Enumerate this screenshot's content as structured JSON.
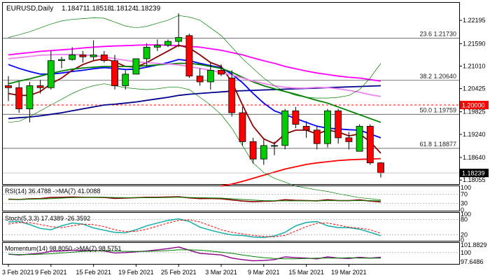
{
  "chart_data": {
    "type": "candlestick",
    "symbol": "EURUSD",
    "timeframe": "Daily",
    "header": {
      "title": "EURUSD,Daily",
      "ohlc": [
        "1.18471",
        "1.18518",
        "1.18124",
        "1.18239"
      ]
    },
    "price_axis": {
      "ylim": [
        1.1795,
        1.2265
      ],
      "ticks": [
        "1.22195",
        "1.21590",
        "1.21010",
        "1.20425",
        "1.19825",
        "1.19240",
        "1.18640",
        "1.18055"
      ],
      "current_price": "1.18239",
      "round_level": "1.20000"
    },
    "x_axis": {
      "labels": [
        "3 Feb 2021",
        "9 Feb 2021",
        "15 Feb 2021",
        "19 Feb 2021",
        "25 Feb 2021",
        "3 Mar 2021",
        "9 Mar 2021",
        "15 Mar 2021",
        "19 Mar 2021"
      ]
    },
    "candles": [
      {
        "o": 1.205,
        "h": 1.2075,
        "l": 1.201,
        "c": 1.2045
      },
      {
        "o": 1.2045,
        "h": 1.206,
        "l": 1.198,
        "c": 1.199
      },
      {
        "o": 1.199,
        "h": 1.206,
        "l": 1.1955,
        "c": 1.205
      },
      {
        "o": 1.205,
        "h": 1.2065,
        "l": 1.203,
        "c": 1.2045
      },
      {
        "o": 1.2045,
        "h": 1.214,
        "l": 1.204,
        "c": 1.2115
      },
      {
        "o": 1.2115,
        "h": 1.2125,
        "l": 1.2095,
        "c": 1.2118
      },
      {
        "o": 1.2118,
        "h": 1.215,
        "l": 1.2115,
        "c": 1.213
      },
      {
        "o": 1.213,
        "h": 1.214,
        "l": 1.211,
        "c": 1.2125
      },
      {
        "o": 1.2125,
        "h": 1.2168,
        "l": 1.2115,
        "c": 1.213
      },
      {
        "o": 1.213,
        "h": 1.214,
        "l": 1.211,
        "c": 1.2115
      },
      {
        "o": 1.2115,
        "h": 1.213,
        "l": 1.204,
        "c": 1.205
      },
      {
        "o": 1.205,
        "h": 1.209,
        "l": 1.204,
        "c": 1.208
      },
      {
        "o": 1.208,
        "h": 1.212,
        "l": 1.208,
        "c": 1.212
      },
      {
        "o": 1.212,
        "h": 1.216,
        "l": 1.21,
        "c": 1.215
      },
      {
        "o": 1.215,
        "h": 1.217,
        "l": 1.214,
        "c": 1.2155
      },
      {
        "o": 1.2155,
        "h": 1.217,
        "l": 1.215,
        "c": 1.2165
      },
      {
        "o": 1.2165,
        "h": 1.2238,
        "l": 1.215,
        "c": 1.2175
      },
      {
        "o": 1.218,
        "h": 1.2185,
        "l": 1.207,
        "c": 1.2075
      },
      {
        "o": 1.2075,
        "h": 1.2095,
        "l": 1.205,
        "c": 1.206
      },
      {
        "o": 1.206,
        "h": 1.211,
        "l": 1.204,
        "c": 1.209
      },
      {
        "o": 1.209,
        "h": 1.2105,
        "l": 1.2075,
        "c": 1.208
      },
      {
        "o": 1.207,
        "h": 1.209,
        "l": 1.197,
        "c": 1.198
      },
      {
        "o": 1.198,
        "h": 1.1995,
        "l": 1.1895,
        "c": 1.1905
      },
      {
        "o": 1.1905,
        "h": 1.1915,
        "l": 1.1848,
        "c": 1.186
      },
      {
        "o": 1.186,
        "h": 1.191,
        "l": 1.1845,
        "c": 1.1895
      },
      {
        "o": 1.1895,
        "h": 1.1905,
        "l": 1.187,
        "c": 1.1895
      },
      {
        "o": 1.1895,
        "h": 1.199,
        "l": 1.1885,
        "c": 1.1985
      },
      {
        "o": 1.1985,
        "h": 1.1995,
        "l": 1.194,
        "c": 1.195
      },
      {
        "o": 1.1945,
        "h": 1.1958,
        "l": 1.1915,
        "c": 1.1935
      },
      {
        "o": 1.1935,
        "h": 1.1945,
        "l": 1.1885,
        "c": 1.19
      },
      {
        "o": 1.19,
        "h": 1.199,
        "l": 1.189,
        "c": 1.1985
      },
      {
        "o": 1.1985,
        "h": 1.199,
        "l": 1.19,
        "c": 1.1915
      },
      {
        "o": 1.1915,
        "h": 1.193,
        "l": 1.1885,
        "c": 1.1905
      },
      {
        "o": 1.188,
        "h": 1.195,
        "l": 1.188,
        "c": 1.1945
      },
      {
        "o": 1.1945,
        "h": 1.195,
        "l": 1.1845,
        "c": 1.185
      },
      {
        "o": 1.185,
        "h": 1.1852,
        "l": 1.1812,
        "c": 1.1824
      }
    ],
    "overlays": [
      {
        "color": "#00008b",
        "values": [
          1.1965,
          1.1967,
          1.1969,
          1.1972,
          1.1976,
          1.198,
          1.1985,
          1.199,
          1.1995,
          1.2,
          1.2002,
          1.2005,
          1.2008,
          1.2012,
          1.2016,
          1.202,
          1.2025,
          1.2028,
          1.203,
          1.2032,
          1.2034,
          1.2036,
          1.2037,
          1.2038,
          1.2039,
          1.204,
          1.2041,
          1.2042,
          1.2043,
          1.2044,
          1.2045,
          1.2046,
          1.2047,
          1.2048,
          1.2049,
          1.205
        ]
      },
      {
        "color": "#ff00ff",
        "values": [
          1.213,
          1.2133,
          1.2136,
          1.2139,
          1.2141,
          1.2143,
          1.2145,
          1.2148,
          1.215,
          1.2152,
          1.2153,
          1.2154,
          1.2155,
          1.2156,
          1.2156,
          1.2155,
          1.2154,
          1.2152,
          1.215,
          1.2146,
          1.2142,
          1.2136,
          1.213,
          1.2122,
          1.2115,
          1.2108,
          1.21,
          1.2094,
          1.2088,
          1.2083,
          1.2079,
          1.2075,
          1.2072,
          1.207,
          1.2066,
          1.2062
        ]
      },
      {
        "color": "#0000ff",
        "values": [
          1.2105,
          1.2095,
          1.2087,
          1.208,
          1.208,
          1.2083,
          1.2087,
          1.209,
          1.2094,
          1.2097,
          1.2095,
          1.2092,
          1.2093,
          1.2098,
          1.2104,
          1.211,
          1.2118,
          1.2115,
          1.2108,
          1.2102,
          1.2097,
          1.208,
          1.2058,
          1.203,
          1.2005,
          1.1985,
          1.1975,
          1.1965,
          1.1955,
          1.1945,
          1.194,
          1.1938,
          1.1936,
          1.1935,
          1.1925,
          1.1915
        ]
      },
      {
        "color": "#8b0000",
        "values": [
          1.203,
          1.2025,
          1.2025,
          1.2035,
          1.2055,
          1.207,
          1.209,
          1.2105,
          1.2115,
          1.212,
          1.2112,
          1.21,
          1.2098,
          1.211,
          1.2125,
          1.214,
          1.2155,
          1.2148,
          1.213,
          1.211,
          1.21,
          1.206,
          1.2,
          1.1945,
          1.1912,
          1.19,
          1.1925,
          1.1935,
          1.1935,
          1.1925,
          1.1935,
          1.193,
          1.192,
          1.1925,
          1.1905,
          1.1875
        ]
      },
      {
        "color": "#008000",
        "values": [
          1.2055,
          1.2062,
          1.2068,
          1.2075,
          1.2082,
          1.2088,
          1.2093,
          1.2096,
          1.2098,
          1.21,
          1.21,
          1.21,
          1.21,
          1.2102,
          1.2104,
          1.2106,
          1.2108,
          1.2108,
          1.2105,
          1.21,
          1.2095,
          1.2085,
          1.2072,
          1.206,
          1.205,
          1.2042,
          1.2035,
          1.2028,
          1.202,
          1.2012,
          1.2005,
          1.1995,
          1.1985,
          1.1975,
          1.1965,
          1.1955
        ]
      },
      {
        "color": "#ee82ee",
        "values": [
          1.212,
          1.2123,
          1.2126,
          1.2129,
          1.213,
          1.2131,
          1.2131,
          1.213,
          1.2128,
          1.2125,
          1.212,
          1.2116,
          1.2112,
          1.211,
          1.2108,
          1.2106,
          1.2104,
          1.21,
          1.2095,
          1.209,
          1.2084,
          1.2078,
          1.207,
          1.2062,
          1.2056,
          1.205,
          1.2046,
          1.2044,
          1.2044,
          1.2046,
          1.2045,
          1.2042,
          1.2038,
          1.2033,
          1.2027,
          1.2022
        ]
      },
      {
        "color": "#ff0000",
        "values": [
          null,
          null,
          null,
          null,
          null,
          null,
          null,
          null,
          null,
          null,
          null,
          null,
          null,
          null,
          null,
          null,
          null,
          null,
          null,
          null,
          1.179,
          1.1795,
          1.1802,
          1.181,
          1.1818,
          1.1826,
          1.1834,
          1.184,
          1.1846,
          1.185,
          1.1853,
          1.1856,
          1.1858,
          1.1859,
          1.186,
          1.1861
        ]
      },
      {
        "color": "#008000",
        "width": 0.7,
        "values": [
          1.2175,
          1.2182,
          1.219,
          1.22,
          1.221,
          1.2218,
          1.2222,
          1.2224,
          1.2226,
          1.2225,
          1.2215,
          1.2205,
          1.22,
          1.2204,
          1.2212,
          1.222,
          1.2232,
          1.2228,
          1.222,
          1.22,
          1.218,
          1.215,
          1.212,
          1.2095,
          1.207,
          1.205,
          1.2035,
          1.2025,
          1.202,
          1.2018,
          1.2018,
          1.202,
          1.2025,
          1.204,
          1.207,
          1.2108
        ]
      },
      {
        "color": "#008000",
        "width": 0.7,
        "values": [
          1.1955,
          1.1958,
          1.197,
          1.1985,
          1.2,
          1.2015,
          1.203,
          1.2042,
          1.205,
          1.2055,
          1.205,
          1.2045,
          1.2042,
          1.204,
          1.2042,
          1.2046,
          1.2046,
          1.204,
          1.202,
          1.2,
          1.1975,
          1.194,
          1.1895,
          1.185,
          1.1825,
          1.181,
          1.18,
          1.179,
          1.1785,
          1.178,
          1.1776,
          1.177,
          1.1765,
          1.176,
          1.1757,
          1.1754
        ]
      }
    ],
    "levels": [
      {
        "label": "23.6 1.21730",
        "price": 1.2173,
        "color": "#222222"
      },
      {
        "label": "38.2 1.20640",
        "price": 1.2064,
        "color": "#222222"
      },
      {
        "label": "50.0 1.19759",
        "price": 1.19759,
        "color": "#222222"
      },
      {
        "label": "61.8 1.18877",
        "price": 1.18877,
        "color": "#222222"
      }
    ],
    "indicators": {
      "rsi": {
        "label": "RSI(14) 36.4788 ->MA(7) 41.0088",
        "ticks": [
          "100",
          "70",
          "30",
          "0"
        ],
        "ylim": [
          0,
          100
        ],
        "values": [
          48,
          47,
          50,
          51,
          56,
          57,
          58,
          57,
          57,
          56,
          52,
          53,
          55,
          57,
          57,
          58,
          59,
          54,
          51,
          52,
          50,
          45,
          40,
          37,
          39,
          40,
          46,
          43,
          42,
          41,
          46,
          42,
          42,
          45,
          40,
          36
        ],
        "ma": [
          47,
          47,
          48,
          49,
          51,
          53,
          55,
          56,
          57,
          57,
          56,
          55,
          55,
          55,
          55,
          56,
          57,
          56,
          55,
          54,
          53,
          50,
          47,
          44,
          42,
          41,
          41,
          41,
          41,
          41,
          42,
          42,
          42,
          42,
          42,
          41
        ]
      },
      "stoch": {
        "label": "Stoch(5,3,3) 17.4389 -26.3592",
        "ticks": [
          "100",
          "80",
          "20",
          "0"
        ],
        "ylim": [
          0,
          100
        ],
        "k": [
          70,
          72,
          60,
          45,
          40,
          55,
          66,
          62,
          47,
          38,
          30,
          28,
          40,
          55,
          66,
          76,
          82,
          72,
          50,
          38,
          28,
          20,
          18,
          12,
          10,
          16,
          30,
          55,
          68,
          72,
          55,
          48,
          48,
          42,
          30,
          17
        ],
        "d": [
          62,
          68,
          67,
          60,
          52,
          48,
          55,
          62,
          60,
          52,
          40,
          33,
          34,
          42,
          54,
          66,
          76,
          78,
          70,
          55,
          40,
          30,
          24,
          18,
          14,
          13,
          18,
          35,
          52,
          65,
          66,
          58,
          50,
          46,
          40,
          26
        ]
      },
      "momentum": {
        "label": "Momentum(14) 98.8050 ->MA(7) 98.5751",
        "ticks": [
          "101.8829",
          "100",
          "97.6486"
        ],
        "ylim": [
          97.3,
          102.1
        ],
        "values": [
          99.6,
          99.4,
          99.6,
          99.8,
          100.3,
          100.4,
          100.6,
          100.5,
          100.5,
          100.4,
          99.9,
          100.0,
          100.2,
          100.4,
          100.7,
          101.0,
          101.4,
          100.6,
          99.8,
          99.6,
          99.4,
          98.6,
          98.2,
          97.9,
          98.0,
          98.2,
          98.9,
          98.7,
          98.6,
          98.4,
          98.9,
          98.6,
          98.5,
          98.8,
          98.6,
          98.8
        ],
        "ma": [
          99.6,
          99.5,
          99.5,
          99.6,
          99.7,
          99.9,
          100.1,
          100.3,
          100.4,
          100.5,
          100.4,
          100.3,
          100.3,
          100.3,
          100.4,
          100.5,
          100.7,
          100.7,
          100.6,
          100.4,
          100.1,
          99.8,
          99.4,
          99.0,
          98.7,
          98.5,
          98.4,
          98.4,
          98.5,
          98.6,
          98.6,
          98.6,
          98.7,
          98.6,
          98.6,
          98.6
        ]
      }
    }
  }
}
